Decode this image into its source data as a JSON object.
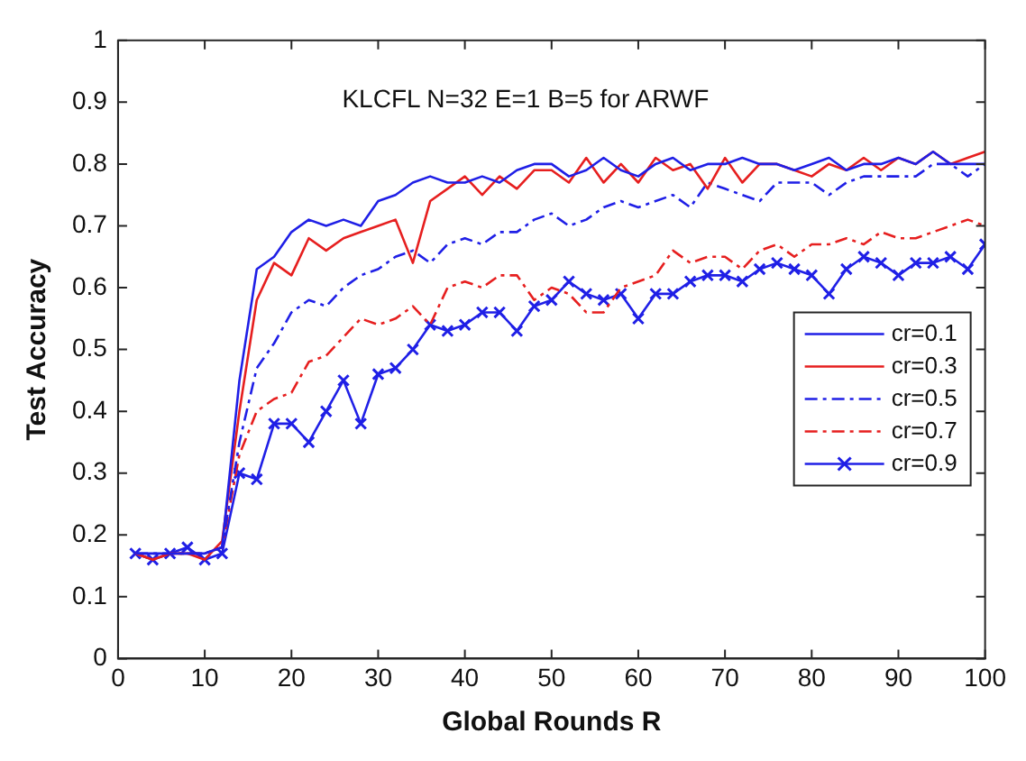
{
  "chart_data": {
    "type": "line",
    "xlabel": "Global Rounds R",
    "ylabel": "Test Accuracy",
    "annotations": [
      "KLCFL N=32 E=1 B=5 for ARWF"
    ],
    "x": [
      2,
      4,
      6,
      8,
      10,
      12,
      14,
      16,
      18,
      20,
      22,
      24,
      26,
      28,
      30,
      32,
      34,
      36,
      38,
      40,
      42,
      44,
      46,
      48,
      50,
      52,
      54,
      56,
      58,
      60,
      62,
      64,
      66,
      68,
      70,
      72,
      74,
      76,
      78,
      80,
      82,
      84,
      86,
      88,
      90,
      92,
      94,
      96,
      98,
      100
    ],
    "xlim": [
      0,
      100
    ],
    "xticks": [
      0,
      10,
      20,
      30,
      40,
      50,
      60,
      70,
      80,
      90,
      100
    ],
    "ylim": [
      0,
      1
    ],
    "yticks": [
      0,
      0.1,
      0.2,
      0.3,
      0.4,
      0.5,
      0.6,
      0.7,
      0.8,
      0.9,
      1
    ],
    "grid": false,
    "legend": "right",
    "series": [
      {
        "name": "cr=0.1",
        "color": "#1f1fe6",
        "line_style": "solid",
        "marker": "none",
        "values": [
          0.17,
          0.17,
          0.17,
          0.17,
          0.17,
          0.18,
          0.45,
          0.63,
          0.65,
          0.69,
          0.71,
          0.7,
          0.71,
          0.7,
          0.74,
          0.75,
          0.77,
          0.78,
          0.77,
          0.77,
          0.78,
          0.77,
          0.79,
          0.8,
          0.8,
          0.78,
          0.79,
          0.81,
          0.79,
          0.78,
          0.8,
          0.81,
          0.79,
          0.8,
          0.8,
          0.81,
          0.8,
          0.8,
          0.79,
          0.8,
          0.81,
          0.79,
          0.8,
          0.8,
          0.81,
          0.8,
          0.82,
          0.8,
          0.8,
          0.8
        ]
      },
      {
        "name": "cr=0.3",
        "color": "#e61f1f",
        "line_style": "solid",
        "marker": "none",
        "values": [
          0.17,
          0.16,
          0.17,
          0.17,
          0.16,
          0.19,
          0.4,
          0.58,
          0.64,
          0.62,
          0.68,
          0.66,
          0.68,
          0.69,
          0.7,
          0.71,
          0.64,
          0.74,
          0.76,
          0.78,
          0.75,
          0.78,
          0.76,
          0.79,
          0.79,
          0.77,
          0.81,
          0.77,
          0.8,
          0.77,
          0.81,
          0.79,
          0.8,
          0.76,
          0.81,
          0.77,
          0.8,
          0.8,
          0.79,
          0.78,
          0.8,
          0.79,
          0.81,
          0.79,
          0.81,
          0.8,
          0.82,
          0.8,
          0.81,
          0.82
        ]
      },
      {
        "name": "cr=0.5",
        "color": "#1f1fe6",
        "line_style": "dashed",
        "marker": "none",
        "values": [
          0.17,
          0.17,
          0.17,
          0.17,
          0.17,
          0.18,
          0.35,
          0.47,
          0.51,
          0.56,
          0.58,
          0.57,
          0.6,
          0.62,
          0.63,
          0.65,
          0.66,
          0.64,
          0.67,
          0.68,
          0.67,
          0.69,
          0.69,
          0.71,
          0.72,
          0.7,
          0.71,
          0.73,
          0.74,
          0.73,
          0.74,
          0.75,
          0.73,
          0.77,
          0.76,
          0.75,
          0.74,
          0.77,
          0.77,
          0.77,
          0.75,
          0.77,
          0.78,
          0.78,
          0.78,
          0.78,
          0.8,
          0.8,
          0.78,
          0.8
        ]
      },
      {
        "name": "cr=0.7",
        "color": "#e61f1f",
        "line_style": "dashed",
        "marker": "none",
        "values": [
          0.17,
          0.16,
          0.17,
          0.17,
          0.17,
          0.18,
          0.33,
          0.4,
          0.42,
          0.43,
          0.48,
          0.49,
          0.52,
          0.55,
          0.54,
          0.55,
          0.57,
          0.54,
          0.6,
          0.61,
          0.6,
          0.62,
          0.62,
          0.58,
          0.6,
          0.59,
          0.56,
          0.56,
          0.6,
          0.61,
          0.62,
          0.66,
          0.64,
          0.65,
          0.65,
          0.63,
          0.66,
          0.67,
          0.65,
          0.67,
          0.67,
          0.68,
          0.67,
          0.69,
          0.68,
          0.68,
          0.69,
          0.7,
          0.71,
          0.7
        ]
      },
      {
        "name": "cr=0.9",
        "color": "#1f1fe6",
        "line_style": "solid",
        "marker": "cross",
        "values": [
          0.17,
          0.16,
          0.17,
          0.18,
          0.16,
          0.17,
          0.3,
          0.29,
          0.38,
          0.38,
          0.35,
          0.4,
          0.45,
          0.38,
          0.46,
          0.47,
          0.5,
          0.54,
          0.53,
          0.54,
          0.56,
          0.56,
          0.53,
          0.57,
          0.58,
          0.61,
          0.59,
          0.58,
          0.59,
          0.55,
          0.59,
          0.59,
          0.61,
          0.62,
          0.62,
          0.61,
          0.63,
          0.64,
          0.63,
          0.62,
          0.59,
          0.63,
          0.65,
          0.64,
          0.62,
          0.64,
          0.64,
          0.65,
          0.63,
          0.67
        ]
      }
    ]
  }
}
